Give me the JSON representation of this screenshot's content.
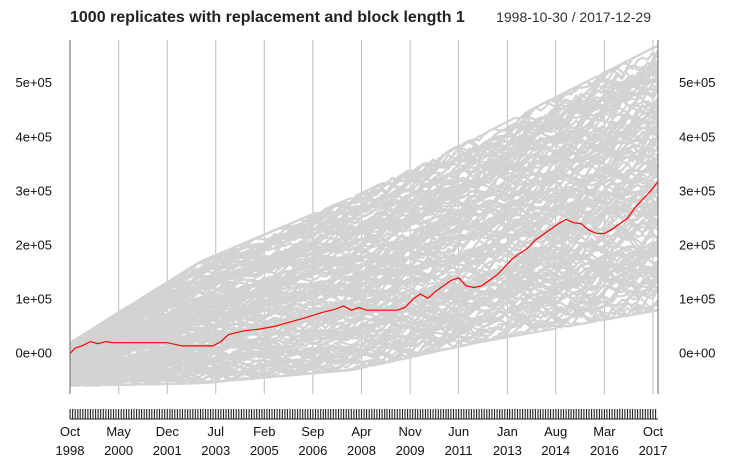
{
  "chart_data": {
    "type": "line",
    "title": "1000 replicates with replacement and block length 1",
    "date_range": "1998-10-30 / 2017-12-29",
    "xlabel": "",
    "ylabel": "",
    "x_range": [
      "1998-10-30",
      "2017-12-29"
    ],
    "ylim": [
      -75000,
      580000
    ],
    "y_ticks": [
      0,
      100000,
      200000,
      300000,
      400000,
      500000
    ],
    "y_tick_labels": [
      "0e+00",
      "1e+05",
      "2e+05",
      "3e+05",
      "4e+05",
      "5e+05"
    ],
    "y_axis_sides": [
      "left",
      "right"
    ],
    "x_ticks": [
      {
        "date": "1998-10-30",
        "month": "Oct",
        "year": "1998"
      },
      {
        "date": "2000-05-31",
        "month": "May",
        "year": "2000"
      },
      {
        "date": "2001-12-31",
        "month": "Dec",
        "year": "2001"
      },
      {
        "date": "2003-07-31",
        "month": "Jul",
        "year": "2003"
      },
      {
        "date": "2005-02-28",
        "month": "Feb",
        "year": "2005"
      },
      {
        "date": "2006-09-29",
        "month": "Sep",
        "year": "2006"
      },
      {
        "date": "2008-04-30",
        "month": "Apr",
        "year": "2008"
      },
      {
        "date": "2009-11-30",
        "month": "Nov",
        "year": "2009"
      },
      {
        "date": "2011-06-30",
        "month": "Jun",
        "year": "2011"
      },
      {
        "date": "2013-01-31",
        "month": "Jan",
        "year": "2013"
      },
      {
        "date": "2014-08-29",
        "month": "Aug",
        "year": "2014"
      },
      {
        "date": "2016-03-31",
        "month": "Mar",
        "year": "2016"
      },
      {
        "date": "2017-10-31",
        "month": "Oct",
        "year": "2017"
      }
    ],
    "grid": true,
    "replicate_count": 1000,
    "replicate_envelope": {
      "x": [
        "1998-10-30",
        "2003-01-31",
        "2008-01-31",
        "2012-01-31",
        "2017-12-29"
      ],
      "upper": [
        20000,
        170000,
        290000,
        400000,
        570000
      ],
      "lower": [
        -60000,
        -55000,
        -30000,
        20000,
        80000
      ]
    },
    "series": [
      {
        "role": "observed",
        "color": "#ff0000",
        "x": [
          "1998-10-30",
          "1998-12-31",
          "1999-03-31",
          "1999-06-30",
          "1999-09-30",
          "1999-12-31",
          "2000-03-31",
          "2000-06-30",
          "2000-12-29",
          "2001-06-29",
          "2001-12-31",
          "2002-06-28",
          "2002-12-31",
          "2003-06-30",
          "2003-09-30",
          "2003-12-31",
          "2004-06-30",
          "2004-12-31",
          "2005-06-30",
          "2005-12-30",
          "2006-06-30",
          "2006-12-29",
          "2007-06-29",
          "2007-09-28",
          "2007-12-31",
          "2008-03-31",
          "2008-06-30",
          "2008-12-31",
          "2009-06-30",
          "2009-09-30",
          "2009-12-31",
          "2010-03-31",
          "2010-06-30",
          "2010-09-30",
          "2010-12-31",
          "2011-03-31",
          "2011-06-30",
          "2011-09-30",
          "2011-12-30",
          "2012-03-30",
          "2012-06-29",
          "2012-09-28",
          "2012-12-31",
          "2013-03-28",
          "2013-06-28",
          "2013-09-30",
          "2013-12-31",
          "2014-03-31",
          "2014-06-30",
          "2014-09-30",
          "2014-12-31",
          "2015-03-31",
          "2015-06-30",
          "2015-09-30",
          "2015-12-31",
          "2016-03-31",
          "2016-06-30",
          "2016-09-30",
          "2016-12-30",
          "2017-03-31",
          "2017-06-30",
          "2017-09-29",
          "2017-12-29"
        ],
        "values": [
          0,
          10000,
          15000,
          22000,
          18000,
          22000,
          20000,
          20000,
          20000,
          20000,
          20000,
          14000,
          14000,
          14000,
          22000,
          35000,
          42000,
          45000,
          50000,
          58000,
          66000,
          75000,
          82000,
          88000,
          80000,
          85000,
          80000,
          80000,
          80000,
          85000,
          100000,
          110000,
          102000,
          115000,
          125000,
          135000,
          140000,
          125000,
          122000,
          125000,
          135000,
          145000,
          160000,
          175000,
          185000,
          195000,
          210000,
          220000,
          230000,
          240000,
          248000,
          242000,
          240000,
          228000,
          222000,
          222000,
          230000,
          240000,
          250000,
          270000,
          285000,
          300000,
          318000
        ]
      }
    ]
  }
}
